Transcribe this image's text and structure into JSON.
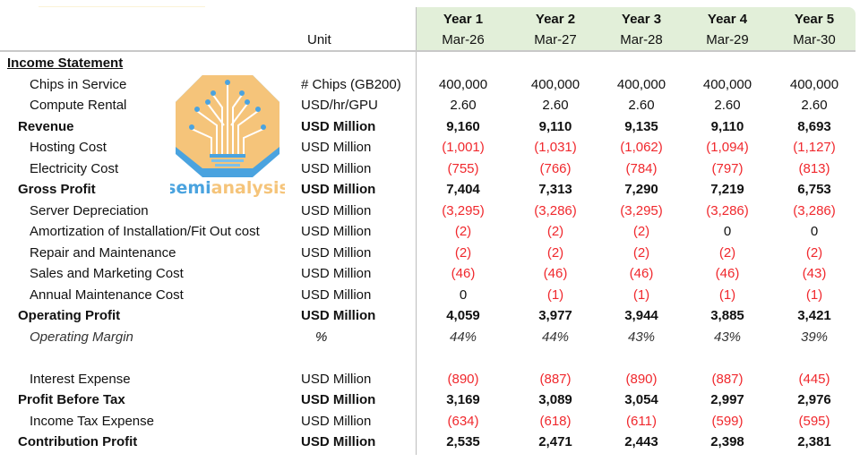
{
  "header": {
    "unit_label": "Unit",
    "years": [
      {
        "year": "Year 1",
        "date": "Mar-26"
      },
      {
        "year": "Year 2",
        "date": "Mar-27"
      },
      {
        "year": "Year 3",
        "date": "Mar-28"
      },
      {
        "year": "Year 4",
        "date": "Mar-29"
      },
      {
        "year": "Year 5",
        "date": "Mar-30"
      }
    ]
  },
  "logo": {
    "text_blue": "semi",
    "text_orange": "analysis"
  },
  "colors": {
    "header_band": "#e2efd9",
    "negative": "#f0282d",
    "logo_orange": "#f5c47a",
    "logo_blue": "#4aa3df"
  },
  "rows": [
    {
      "label": "Income Statement",
      "unit": "",
      "values": [],
      "style": "section"
    },
    {
      "label": "Chips in Service",
      "unit": "# Chips (GB200)",
      "values": [
        "400,000",
        "400,000",
        "400,000",
        "400,000",
        "400,000"
      ],
      "style": "item"
    },
    {
      "label": "Compute Rental",
      "unit": "USD/hr/GPU",
      "values": [
        "2.60",
        "2.60",
        "2.60",
        "2.60",
        "2.60"
      ],
      "style": "item"
    },
    {
      "label": "Revenue",
      "unit": "USD Million",
      "values": [
        "9,160",
        "9,110",
        "9,135",
        "9,110",
        "8,693"
      ],
      "style": "bold"
    },
    {
      "label": "Hosting Cost",
      "unit": "USD Million",
      "values": [
        "(1,001)",
        "(1,031)",
        "(1,062)",
        "(1,094)",
        "(1,127)"
      ],
      "style": "item"
    },
    {
      "label": "Electricity Cost",
      "unit": "USD Million",
      "values": [
        "(755)",
        "(766)",
        "(784)",
        "(797)",
        "(813)"
      ],
      "style": "item"
    },
    {
      "label": "Gross Profit",
      "unit": "USD Million",
      "values": [
        "7,404",
        "7,313",
        "7,290",
        "7,219",
        "6,753"
      ],
      "style": "bold"
    },
    {
      "label": "Server Depreciation",
      "unit": "USD Million",
      "values": [
        "(3,295)",
        "(3,286)",
        "(3,295)",
        "(3,286)",
        "(3,286)"
      ],
      "style": "item"
    },
    {
      "label": "Amortization of Installation/Fit Out cost",
      "unit": "USD Million",
      "values": [
        "(2)",
        "(2)",
        "(2)",
        "0",
        "0"
      ],
      "style": "item"
    },
    {
      "label": "Repair and Maintenance",
      "unit": "USD Million",
      "values": [
        "(2)",
        "(2)",
        "(2)",
        "(2)",
        "(2)"
      ],
      "style": "item"
    },
    {
      "label": "Sales and Marketing Cost",
      "unit": "USD Million",
      "values": [
        "(46)",
        "(46)",
        "(46)",
        "(46)",
        "(43)"
      ],
      "style": "item"
    },
    {
      "label": "Annual Maintenance Cost",
      "unit": "USD Million",
      "values": [
        "0",
        "(1)",
        "(1)",
        "(1)",
        "(1)"
      ],
      "style": "item"
    },
    {
      "label": "Operating Profit",
      "unit": "USD Million",
      "values": [
        "4,059",
        "3,977",
        "3,944",
        "3,885",
        "3,421"
      ],
      "style": "bold"
    },
    {
      "label": "Operating Margin",
      "unit": "%",
      "values": [
        "44%",
        "44%",
        "43%",
        "43%",
        "39%"
      ],
      "style": "italic"
    },
    {
      "label": "",
      "unit": "",
      "values": [],
      "style": "blank"
    },
    {
      "label": "Interest Expense",
      "unit": "USD Million",
      "values": [
        "(890)",
        "(887)",
        "(890)",
        "(887)",
        "(445)"
      ],
      "style": "item"
    },
    {
      "label": "Profit Before Tax",
      "unit": "USD Million",
      "values": [
        "3,169",
        "3,089",
        "3,054",
        "2,997",
        "2,976"
      ],
      "style": "bold"
    },
    {
      "label": "Income Tax Expense",
      "unit": "USD Million",
      "values": [
        "(634)",
        "(618)",
        "(611)",
        "(599)",
        "(595)"
      ],
      "style": "item"
    },
    {
      "label": "Contribution Profit",
      "unit": "USD Million",
      "values": [
        "2,535",
        "2,471",
        "2,443",
        "2,398",
        "2,381"
      ],
      "style": "bold"
    }
  ]
}
